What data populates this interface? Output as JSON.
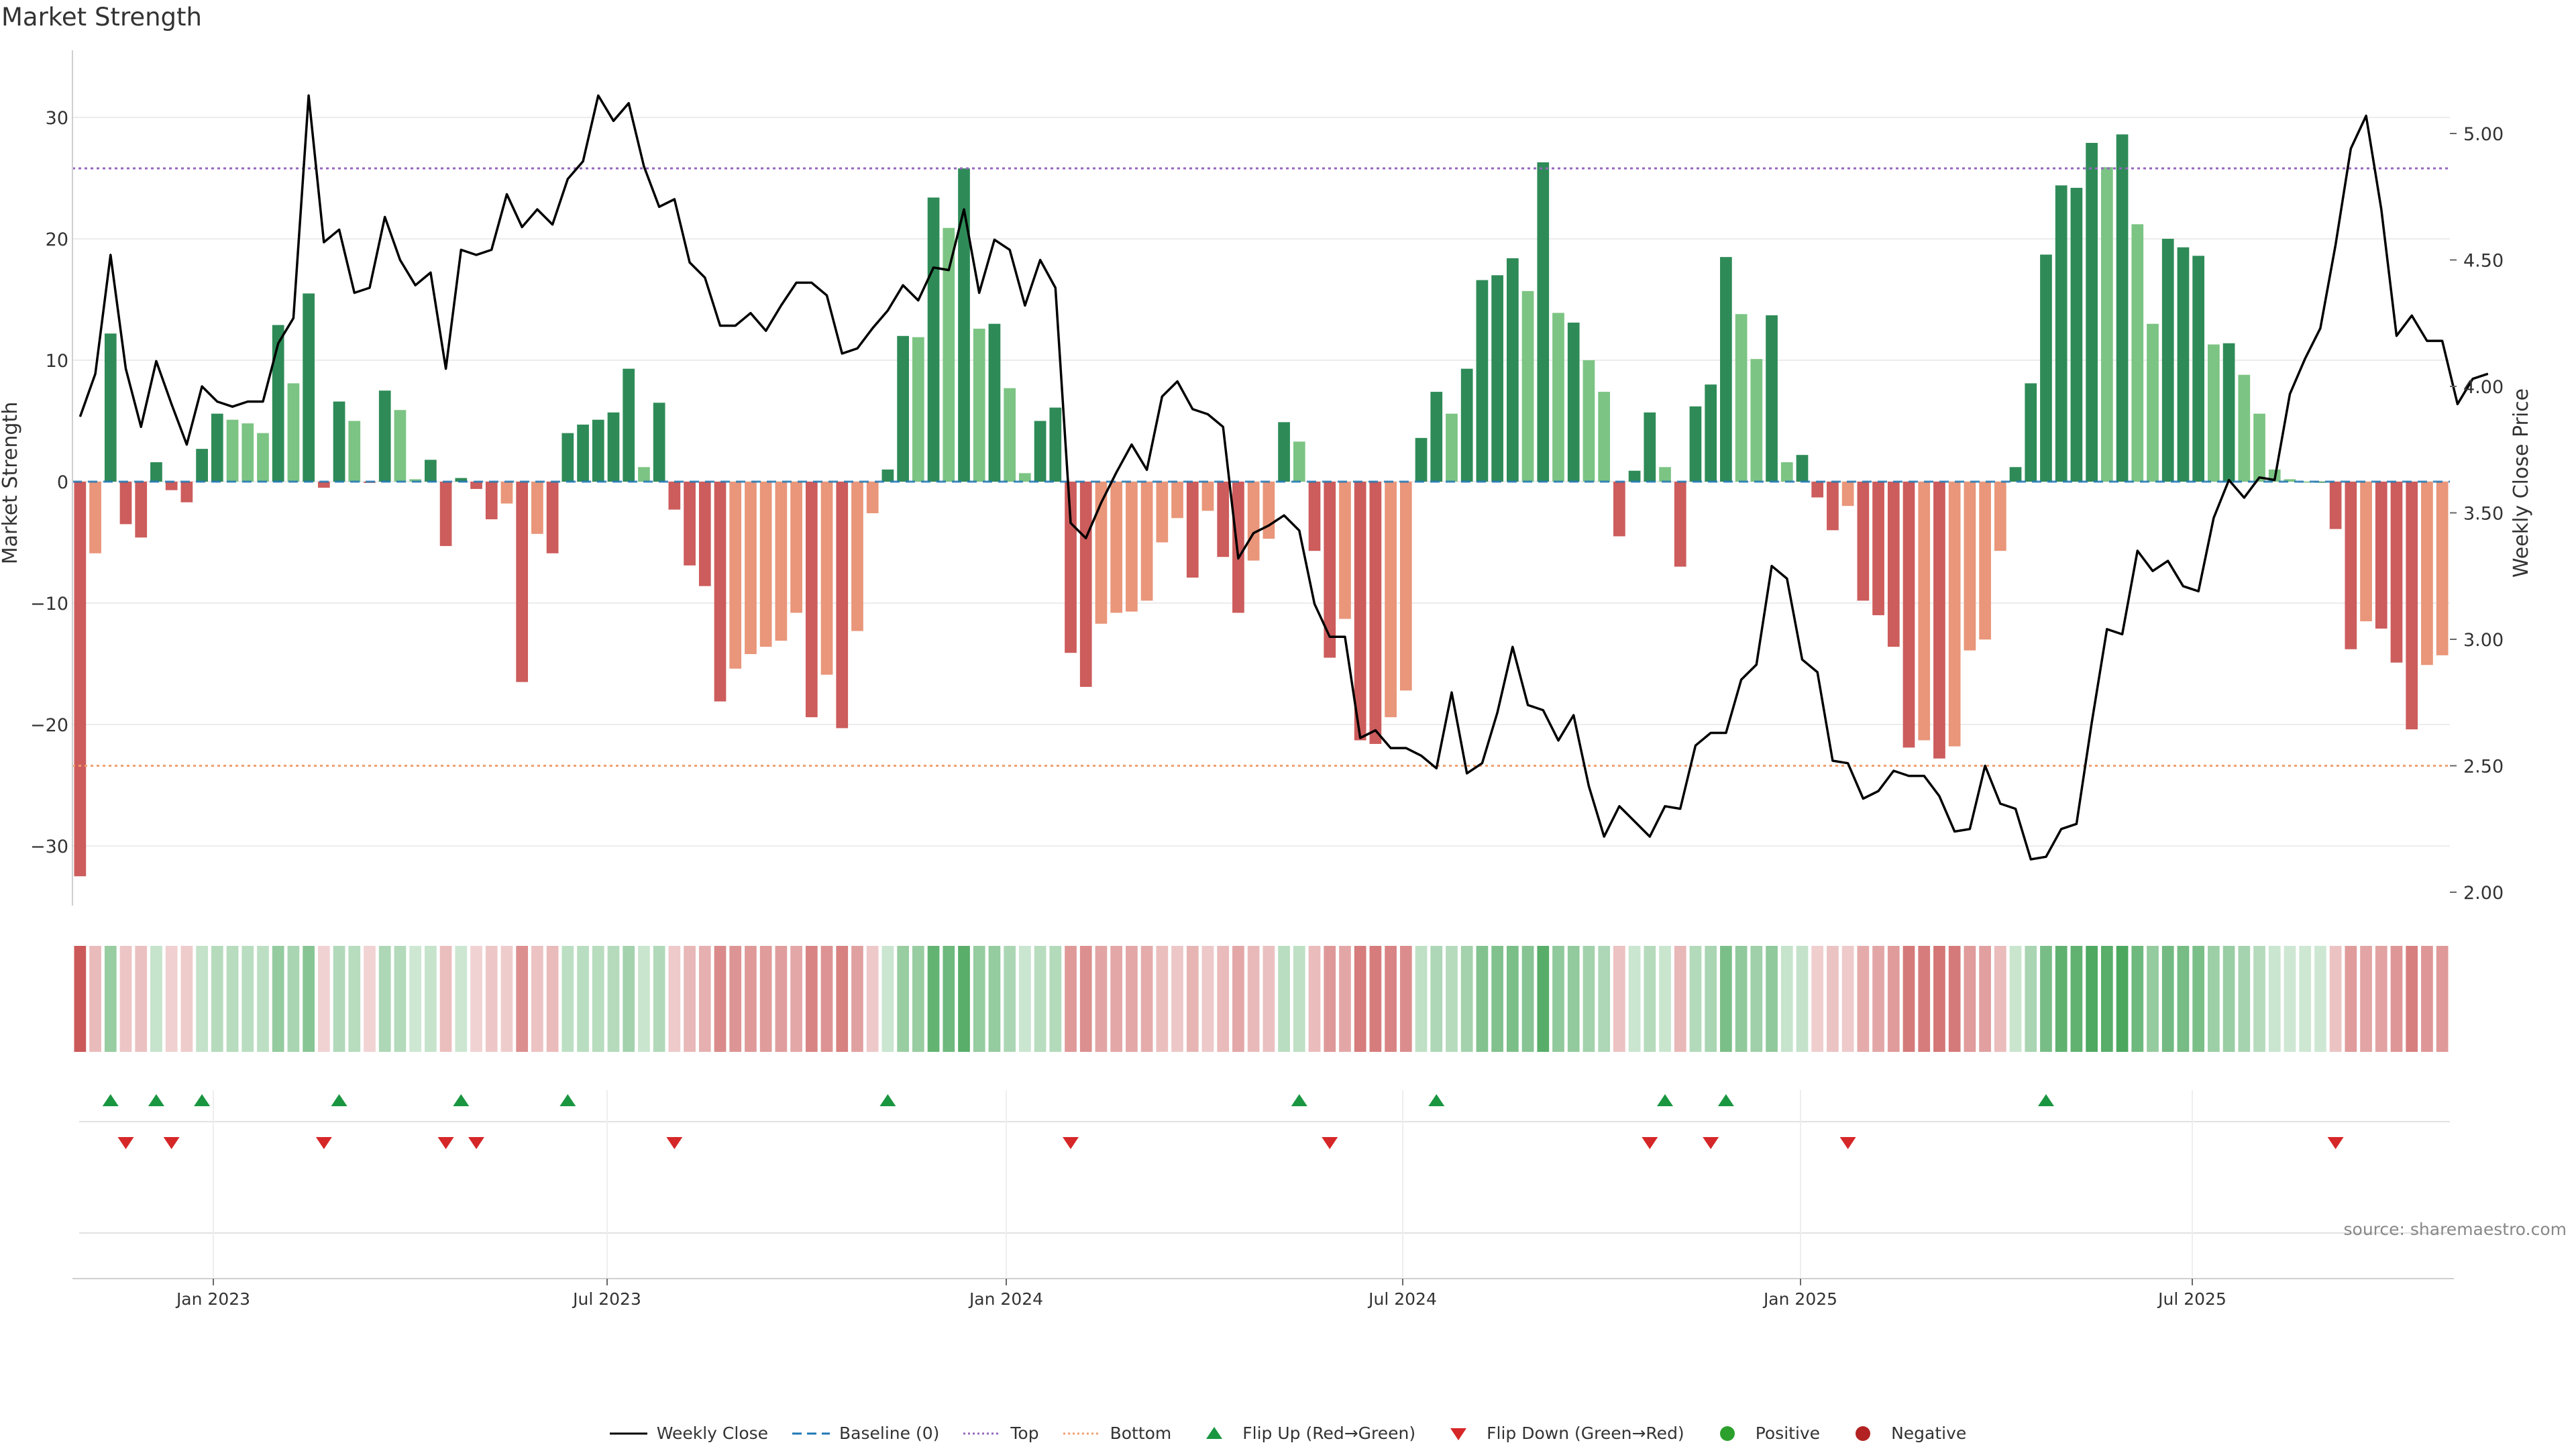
{
  "chart_data": {
    "type": "bar",
    "title": "Market Strength",
    "ylabel": "Market Strength",
    "y2label": "Weekly Close Price",
    "source": "source: sharemaestro.com",
    "ylim": [
      -35,
      35
    ],
    "y2lim": [
      1.95,
      5.3
    ],
    "y_ticks": [
      30,
      20,
      10,
      0,
      -10,
      -20,
      -30
    ],
    "y_tick_labels": [
      "30",
      "20",
      "10",
      "0",
      "−10",
      "−20",
      "−30"
    ],
    "y2_ticks": [
      5.0,
      4.5,
      4.0,
      3.5,
      3.0,
      2.5,
      2.0
    ],
    "y2_tick_labels": [
      "5.00",
      "4.50",
      "4.00",
      "3.50",
      "3.00",
      "2.50",
      "2.00"
    ],
    "x_ticks": [
      "Jan 2023",
      "Jul 2023",
      "Jan 2024",
      "Jul 2024",
      "Jan 2025",
      "Jul 2025"
    ],
    "top_level": 25.8,
    "bottom_level": -23.4,
    "colors": {
      "strong_green": "#2e8b57",
      "light_green": "#7cc483",
      "strong_red": "#cd5c5c",
      "light_red": "#e9967a",
      "close_line": "#000000",
      "baseline": "#1f77b4",
      "top": "#9467bd",
      "bottom": "#f0a070",
      "flip_up": "#1a9641",
      "flip_down": "#d62728"
    },
    "strength": [
      -32.5,
      -5.9,
      12.2,
      -3.5,
      -4.6,
      1.6,
      -0.7,
      -1.7,
      2.7,
      5.6,
      5.1,
      4.8,
      4.0,
      12.9,
      8.1,
      15.5,
      -0.5,
      6.6,
      5.0,
      -0.1,
      7.5,
      5.9,
      0.2,
      1.8,
      -5.3,
      0.3,
      -0.6,
      -3.1,
      -1.8,
      -16.5,
      -4.3,
      -5.9,
      4.0,
      4.7,
      5.1,
      5.7,
      9.3,
      1.2,
      6.5,
      -2.3,
      -6.9,
      -8.6,
      -18.1,
      -15.4,
      -14.2,
      -13.6,
      -13.1,
      -10.8,
      -19.4,
      -15.9,
      -20.3,
      -12.3,
      -2.6,
      1.0,
      12.0,
      11.9,
      23.4,
      20.9,
      25.8,
      12.6,
      13.0,
      7.7,
      0.7,
      5.0,
      6.1,
      -14.1,
      -16.9,
      -11.7,
      -10.8,
      -10.7,
      -9.8,
      -5.0,
      -3.0,
      -7.9,
      -2.4,
      -6.2,
      -10.8,
      -6.5,
      -4.7,
      4.9,
      3.3,
      -5.7,
      -14.5,
      -11.3,
      -21.3,
      -21.6,
      -19.4,
      -17.2,
      3.6,
      7.4,
      5.6,
      9.3,
      16.6,
      17.0,
      18.4,
      15.7,
      26.3,
      13.9,
      13.1,
      10.0,
      7.4,
      -4.5,
      0.9,
      5.7,
      1.2,
      -7.0,
      6.2,
      8.0,
      18.5,
      13.8,
      10.1,
      13.7,
      1.6,
      2.2,
      -1.3,
      -4.0,
      -2.0,
      -9.8,
      -11.0,
      -13.6,
      -21.9,
      -21.3,
      -22.8,
      -21.8,
      -13.9,
      -13.0,
      -5.7,
      1.2,
      8.1,
      18.7,
      24.4,
      24.2,
      27.9,
      25.9,
      28.6,
      21.2,
      13.0,
      20.0,
      19.3,
      18.6,
      11.3,
      11.4,
      8.8,
      5.6,
      1.0,
      0.2,
      0.0,
      0.0,
      -3.9,
      -13.8,
      -11.5,
      -12.1,
      -14.9,
      -20.4,
      -15.1,
      -14.3
    ],
    "weekly_close": [
      3.88,
      4.05,
      4.52,
      4.07,
      3.84,
      4.1,
      3.93,
      3.77,
      4.0,
      3.94,
      3.92,
      3.94,
      3.94,
      4.17,
      4.27,
      5.15,
      4.57,
      4.62,
      4.37,
      4.39,
      4.67,
      4.5,
      4.4,
      4.45,
      4.07,
      4.54,
      4.52,
      4.54,
      4.76,
      4.63,
      4.7,
      4.64,
      4.82,
      4.89,
      5.15,
      5.05,
      5.12,
      4.87,
      4.71,
      4.74,
      4.49,
      4.43,
      4.24,
      4.24,
      4.29,
      4.22,
      4.32,
      4.41,
      4.41,
      4.36,
      4.13,
      4.15,
      4.23,
      4.3,
      4.4,
      4.34,
      4.47,
      4.46,
      4.7,
      4.37,
      4.58,
      4.54,
      4.32,
      4.5,
      4.39,
      3.46,
      3.4,
      3.54,
      3.66,
      3.77,
      3.67,
      3.96,
      4.02,
      3.91,
      3.89,
      3.84,
      3.32,
      3.42,
      3.45,
      3.49,
      3.43,
      3.14,
      3.01,
      3.01,
      2.61,
      2.64,
      2.57,
      2.57,
      2.54,
      2.49,
      2.79,
      2.47,
      2.51,
      2.71,
      2.97,
      2.74,
      2.72,
      2.6,
      2.7,
      2.42,
      2.22,
      2.34,
      2.28,
      2.22,
      2.34,
      2.33,
      2.58,
      2.63,
      2.63,
      2.84,
      2.9,
      3.29,
      3.24,
      2.92,
      2.87,
      2.52,
      2.51,
      2.37,
      2.4,
      2.48,
      2.46,
      2.46,
      2.38,
      2.24,
      2.25,
      2.5,
      2.35,
      2.33,
      2.13,
      2.14,
      2.25,
      2.27,
      2.67,
      3.04,
      3.02,
      3.35,
      3.27,
      3.31,
      3.21,
      3.19,
      3.48,
      3.63,
      3.56,
      3.64,
      3.63,
      3.97,
      4.11,
      4.23,
      4.56,
      4.94,
      5.07,
      4.7,
      4.2,
      4.28,
      4.18,
      4.18,
      3.93,
      4.03,
      4.05
    ],
    "flip_up_weeks": [
      2,
      5,
      8,
      17,
      25,
      32,
      53,
      80,
      89,
      104,
      108,
      129
    ],
    "flip_down_weeks": [
      3,
      6,
      16,
      24,
      26,
      39,
      65,
      82,
      103,
      107,
      116,
      148
    ]
  },
  "legend": [
    {
      "key": "weekly_close",
      "label": "Weekly Close"
    },
    {
      "key": "baseline",
      "label": "Baseline (0)"
    },
    {
      "key": "top",
      "label": "Top"
    },
    {
      "key": "bottom",
      "label": "Bottom"
    },
    {
      "key": "flip_up",
      "label": "Flip Up (Red→Green)"
    },
    {
      "key": "flip_down",
      "label": "Flip Down (Green→Red)"
    },
    {
      "key": "positive",
      "label": "Positive"
    },
    {
      "key": "negative",
      "label": "Negative"
    }
  ]
}
